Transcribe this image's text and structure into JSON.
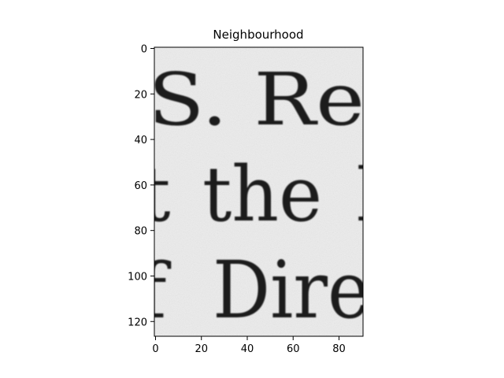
{
  "title": "Neighbourhood",
  "image": {
    "description_text_lines": [
      "S. Re",
      "the",
      "Dire"
    ],
    "background": "#ebebeb",
    "ink": "#1f1f1f"
  },
  "axes": {
    "x_ticks": [
      "0",
      "20",
      "40",
      "60",
      "80"
    ],
    "y_ticks": [
      "0",
      "20",
      "40",
      "60",
      "80",
      "100",
      "120"
    ],
    "x_range": [
      0,
      91
    ],
    "y_range": [
      0,
      127
    ]
  }
}
